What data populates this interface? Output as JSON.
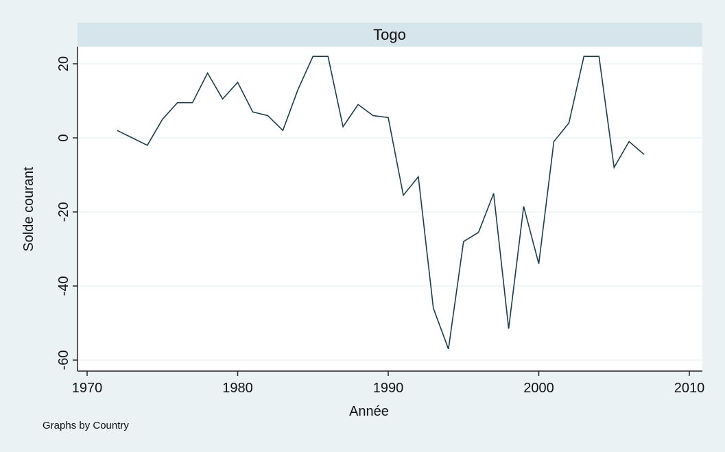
{
  "chart_data": {
    "type": "line",
    "panel_label": "Togo",
    "xlabel": "Année",
    "ylabel": "Solde courant",
    "note": "Graphs by Country",
    "xlim": [
      1970,
      2010
    ],
    "ylim": [
      -62,
      24
    ],
    "xticks": [
      1970,
      1980,
      1990,
      2000,
      2010
    ],
    "yticks": [
      20,
      0,
      -20,
      -40,
      -60
    ],
    "ytick_labels": [
      "20",
      "0",
      "-20",
      "-40",
      "-60"
    ],
    "grid": true,
    "colors": {
      "background": "#eaf2f3",
      "plot": "#ffffff",
      "header": "#d6e4ec",
      "line": "#1f3a48",
      "grid": "#eef3f4"
    },
    "series": [
      {
        "x": [
          1972,
          1973,
          1974,
          1975,
          1976,
          1977,
          1978,
          1979,
          1980,
          1981,
          1982,
          1983,
          1984,
          1985,
          1986,
          1987,
          1988,
          1989,
          1990,
          1991,
          1992,
          1993,
          1994,
          1995,
          1996,
          1997,
          1998,
          1999,
          2000,
          2001,
          2002,
          2003,
          2004,
          2005,
          2006,
          2007
        ],
        "values": [
          2,
          0,
          -2,
          5,
          9.5,
          9.5,
          17.5,
          10.5,
          15,
          7,
          6,
          2,
          13,
          22,
          22,
          3,
          9,
          6,
          5.5,
          -15.5,
          -10.5,
          -46,
          -57,
          -28,
          -25.5,
          -15,
          -51.5,
          -18.5,
          -34,
          -1,
          4,
          22,
          22,
          -8,
          -1,
          -4.5
        ]
      }
    ]
  }
}
